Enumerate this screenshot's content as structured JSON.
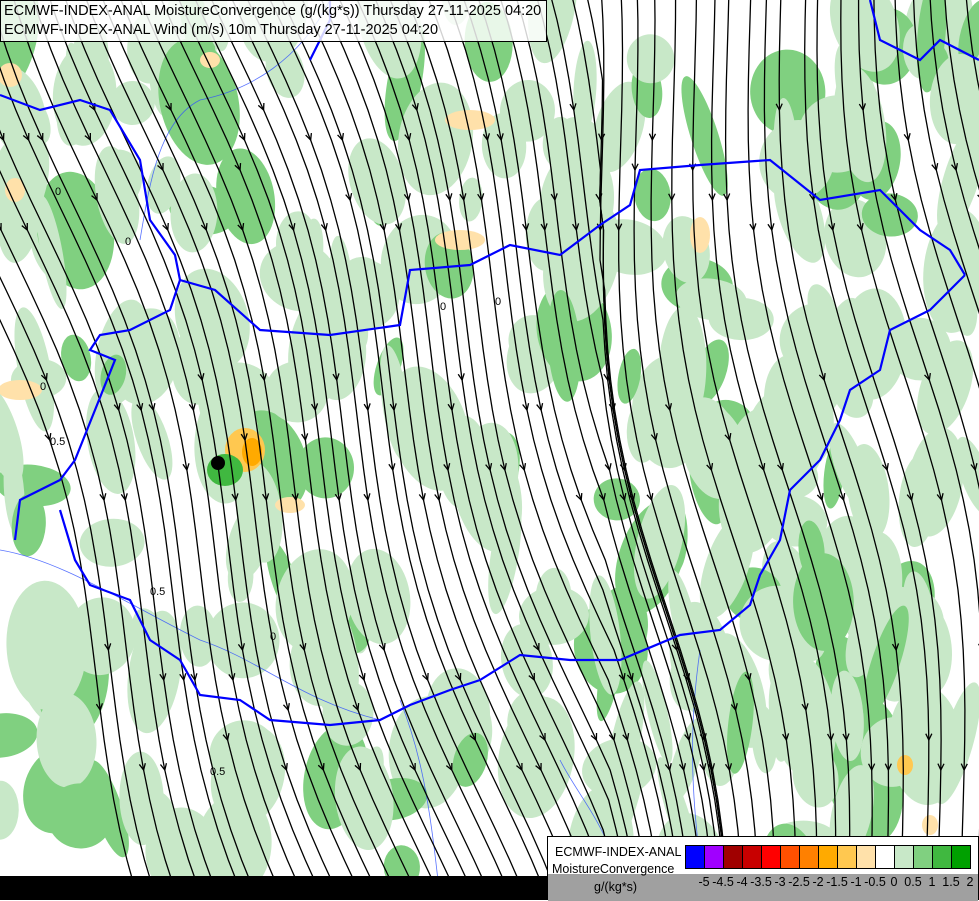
{
  "title": {
    "line1": "ECMWF-INDEX-ANAL MoistureConvergence (g/(kg*s)) Thursday 27-11-2025 04:20",
    "line2": "ECMWF-INDEX-ANAL Wind (m/s) 10m Thursday 27-11-2025 04:20"
  },
  "legend": {
    "model": "ECMWF-INDEX-ANAL",
    "parameter": "MoistureConvergence",
    "unit": "g/(kg*s)",
    "colors": [
      "#0000ff",
      "#a000ff",
      "#a00000",
      "#c80000",
      "#ff0000",
      "#ff5000",
      "#ff8000",
      "#ffaa00",
      "#ffc850",
      "#ffe1aa",
      "#ffffff",
      "#c8e8c8",
      "#80d080",
      "#40b840",
      "#00a000"
    ],
    "ticks": [
      "-5",
      "-4.5",
      "-4",
      "-3.5",
      "-3",
      "-2.5",
      "-2",
      "-1.5",
      "-1",
      "-0.5",
      "0",
      "0.5",
      "1",
      "1.5",
      "2"
    ]
  },
  "map": {
    "border_color": "#0000ff",
    "river_color": "#3050ff",
    "streamline_color": "#000000",
    "contour_labels": [
      "0",
      "0",
      "0",
      "0.5",
      "0",
      "0.5",
      "0",
      "0.5",
      "0"
    ]
  }
}
